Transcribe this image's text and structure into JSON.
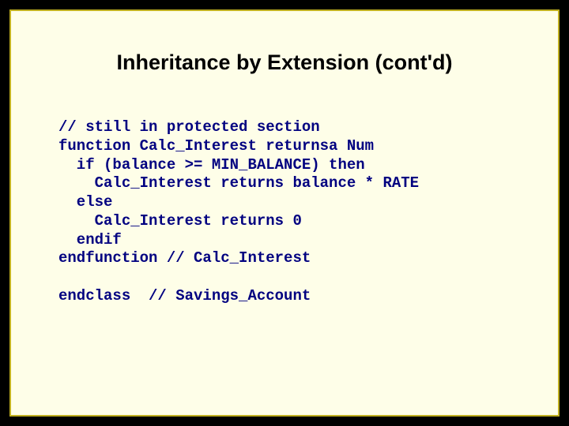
{
  "slide": {
    "title": "Inheritance by Extension (cont'd)",
    "title_color": "#000000",
    "title_fontsize": 27,
    "code_color": "#000080",
    "code_fontsize": 19,
    "background_color": "#fefee8",
    "outer_color": "#000000",
    "border_color": "#c0b020",
    "code_lines": {
      "l0": "// still in protected section",
      "l1": "function Calc_Interest returnsa Num",
      "l2": "  if (balance >= MIN_BALANCE) then",
      "l3": "    Calc_Interest returns balance * RATE",
      "l4": "  else",
      "l5": "    Calc_Interest returns 0",
      "l6": "  endif",
      "l7": "endfunction // Calc_Interest",
      "l8": "",
      "l9": "endclass  // Savings_Account"
    }
  }
}
